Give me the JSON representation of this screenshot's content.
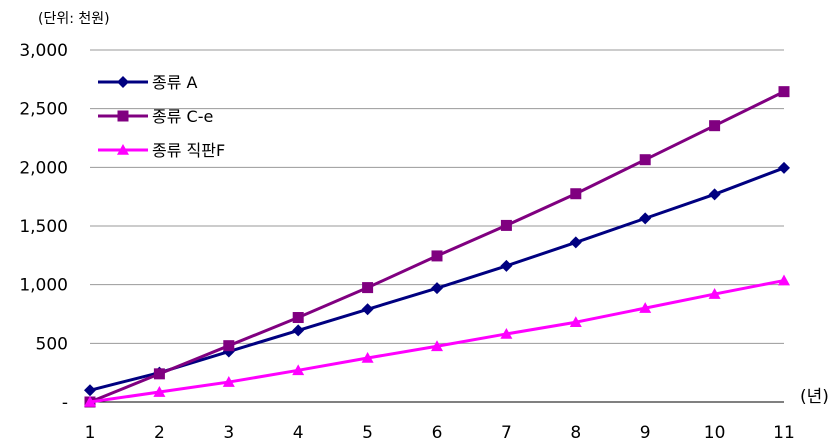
{
  "chart_data": {
    "type": "line",
    "title": "",
    "unit_label": "(단위: 천원)",
    "xlabel": "(년)",
    "ylabel": "",
    "x": [
      1,
      2,
      3,
      4,
      5,
      6,
      7,
      8,
      9,
      10,
      11
    ],
    "x_tick_labels": [
      "1",
      "2",
      "3",
      "4",
      "5",
      "6",
      "7",
      "8",
      "9",
      "10",
      "11"
    ],
    "ylim": [
      0,
      3000
    ],
    "y_ticks": [
      0,
      500,
      1000,
      1500,
      2000,
      2500,
      3000
    ],
    "y_tick_labels": [
      "-",
      "500",
      "1,000",
      "1,500",
      "2,000",
      "2,500",
      "3,000"
    ],
    "grid": "horizontal",
    "legend_position": "top-left",
    "series": [
      {
        "name": "종류 A",
        "color": "#000080",
        "marker": "diamond",
        "values": [
          100,
          250,
          430,
          610,
          790,
          970,
          1160,
          1360,
          1565,
          1770,
          1995
        ]
      },
      {
        "name": "종류 C-e",
        "color": "#800080",
        "marker": "square",
        "values": [
          0,
          240,
          480,
          720,
          975,
          1245,
          1505,
          1775,
          2065,
          2355,
          2645
        ]
      },
      {
        "name": "종류 직판F",
        "color": "#ff00ff",
        "marker": "triangle",
        "values": [
          0,
          85,
          170,
          270,
          375,
          475,
          580,
          680,
          800,
          920,
          1035
        ]
      }
    ]
  }
}
